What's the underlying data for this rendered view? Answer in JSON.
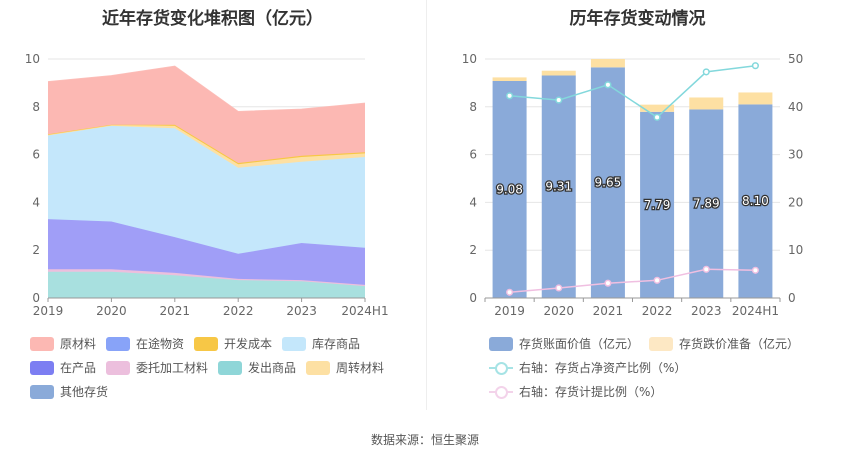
{
  "left": {
    "title": "近年存货变化堆积图（亿元）",
    "legend": [
      "原材料",
      "在途物资",
      "开发成本",
      "库存商品",
      "在产品",
      "委托加工材料",
      "发出商品",
      "周转材料",
      "其他存货"
    ]
  },
  "right": {
    "title": "历年存货变动情况",
    "legend": [
      "存货账面价值（亿元）",
      "存货跌价准备（亿元）",
      "右轴：存货占净资产比例（%）",
      "右轴：存货计提比例（%）"
    ]
  },
  "source": "数据来源：恒生聚源",
  "colors": {
    "raw": "#fcb8b3",
    "transit": "#88a3f8",
    "dev": "#f7c746",
    "stock": "#c4e7fb",
    "wip": "#a09ef7",
    "consign": "#ecbfdd",
    "shipped": "#a8e0df",
    "turnover": "#fde0a3",
    "other": "#8aaad9",
    "book": "#8aaad9",
    "impair": "#fde0a3",
    "ratio": "#83d8dc",
    "provision": "#f0bfe1"
  },
  "chart_data": [
    {
      "type": "area",
      "title": "近年存货变化堆积图（亿元）",
      "categories": [
        "2019",
        "2020",
        "2021",
        "2022",
        "2023",
        "2024H1"
      ],
      "ylim": [
        0,
        10
      ],
      "yticks": [
        0,
        2,
        4,
        6,
        8,
        10
      ],
      "stacked": true,
      "series": [
        {
          "name": "发出商品",
          "values": [
            1.1,
            1.1,
            0.95,
            0.75,
            0.7,
            0.5
          ],
          "color": "#a8e0df"
        },
        {
          "name": "委托加工材料",
          "values": [
            0.1,
            0.1,
            0.1,
            0.05,
            0.05,
            0.05
          ],
          "color": "#ecbfdd"
        },
        {
          "name": "在产品",
          "values": [
            2.1,
            2.0,
            1.5,
            1.05,
            1.55,
            1.55
          ],
          "color": "#a09ef7"
        },
        {
          "name": "库存商品",
          "values": [
            3.5,
            4.0,
            4.55,
            3.6,
            3.4,
            3.8
          ],
          "color": "#c4e7fb"
        },
        {
          "name": "周转材料",
          "values": [
            0.05,
            0.05,
            0.1,
            0.15,
            0.2,
            0.15
          ],
          "color": "#fde0a3"
        },
        {
          "name": "开发成本",
          "values": [
            0.0,
            0.0,
            0.05,
            0.05,
            0.05,
            0.05
          ],
          "color": "#f7c746"
        },
        {
          "name": "原材料",
          "values": [
            2.2,
            2.05,
            2.45,
            2.15,
            1.95,
            2.05
          ],
          "color": "#fcb8b3"
        }
      ],
      "legend": "bottom"
    },
    {
      "type": "bar",
      "title": "历年存货变动情况",
      "categories": [
        "2019",
        "2020",
        "2021",
        "2022",
        "2023",
        "2024H1"
      ],
      "ylim": [
        0,
        10
      ],
      "yticks": [
        0,
        2,
        4,
        6,
        8,
        10
      ],
      "y2lim": [
        0,
        50
      ],
      "y2ticks": [
        0,
        10,
        20,
        30,
        40,
        50
      ],
      "series": [
        {
          "name": "存货账面价值（亿元）",
          "values": [
            9.08,
            9.31,
            9.65,
            7.79,
            7.89,
            8.1
          ],
          "labels": [
            "9.08",
            "9.31",
            "9.65",
            "7.79",
            "7.89",
            "8.10"
          ],
          "stack": "a"
        },
        {
          "name": "存货跌价准备（亿元）",
          "values": [
            0.15,
            0.2,
            0.35,
            0.3,
            0.5,
            0.5
          ],
          "stack": "a"
        },
        {
          "name": "右轴：存货占净资产比例（%）",
          "type": "line",
          "axis": "right",
          "values": [
            42.3,
            41.4,
            44.6,
            37.8,
            47.3,
            48.6
          ]
        },
        {
          "name": "右轴：存货计提比例（%）",
          "type": "line",
          "axis": "right",
          "values": [
            1.2,
            2.1,
            3.1,
            3.7,
            6.0,
            5.8
          ]
        }
      ],
      "legend": "bottom"
    }
  ]
}
